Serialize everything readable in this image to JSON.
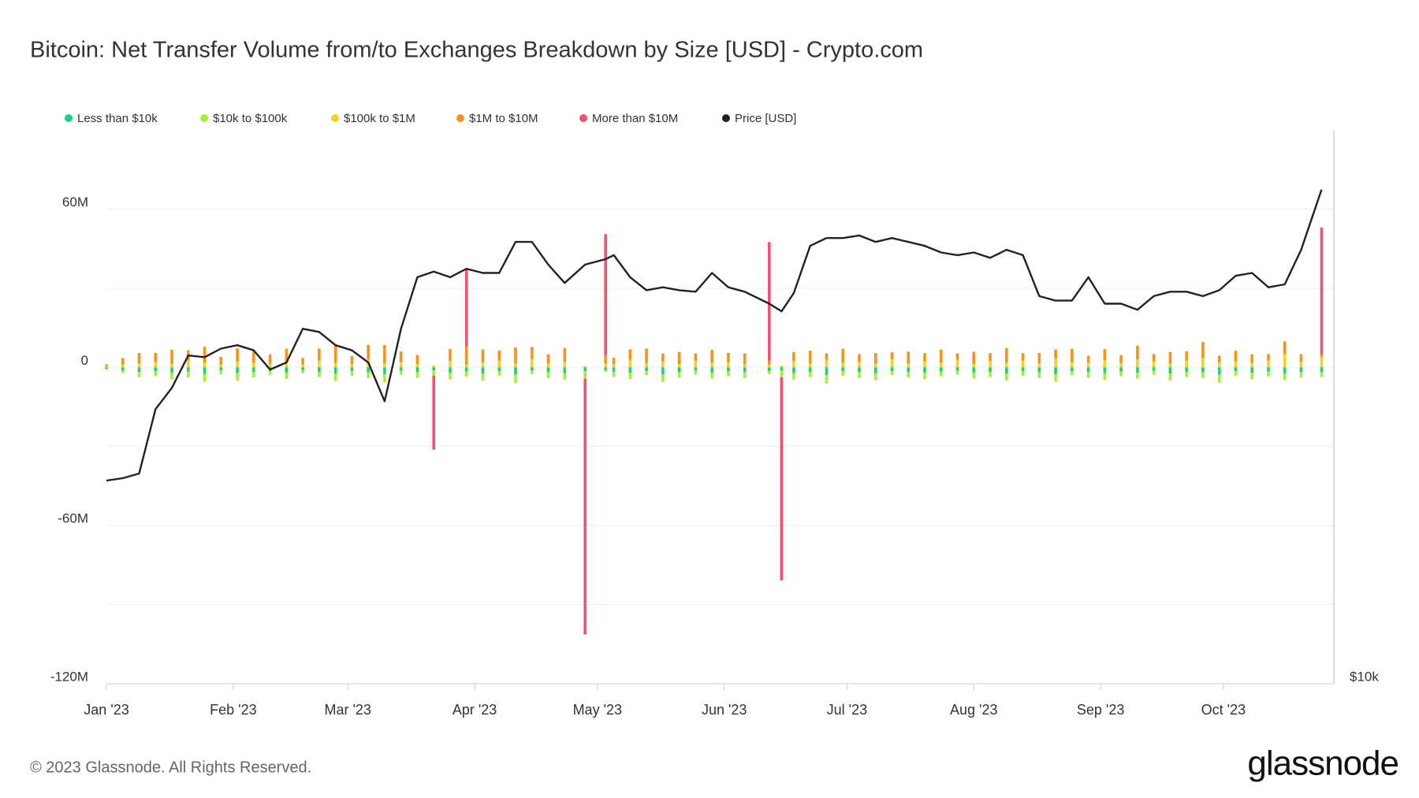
{
  "chart_data": {
    "type": "bar",
    "title": "Bitcoin: Net Transfer Volume from/to Exchanges Breakdown by Size [USD] - Crypto.com",
    "x": [
      0,
      4,
      8,
      12,
      16,
      20,
      24,
      28,
      32,
      36,
      40,
      44,
      48,
      52,
      56,
      60,
      64,
      68,
      72,
      76,
      80,
      84,
      88,
      92,
      96,
      100,
      104,
      108,
      112,
      117,
      122,
      124,
      128,
      132,
      136,
      140,
      144,
      148,
      152,
      156,
      162,
      165,
      168,
      172,
      176,
      180,
      184,
      188,
      192,
      196,
      200,
      204,
      208,
      212,
      216,
      220,
      224,
      228,
      232,
      236,
      240,
      244,
      248,
      252,
      256,
      260,
      264,
      268,
      272,
      276,
      280,
      284,
      288,
      292,
      297
    ],
    "xlim": [
      0,
      300
    ],
    "xticks": [
      {
        "value": 0,
        "label": "Jan '23"
      },
      {
        "value": 31,
        "label": "Feb '23"
      },
      {
        "value": 59,
        "label": "Mar '23"
      },
      {
        "value": 90,
        "label": "Apr '23"
      },
      {
        "value": 120,
        "label": "May '23"
      },
      {
        "value": 151,
        "label": "Jun '23"
      },
      {
        "value": 181,
        "label": "Jul '23"
      },
      {
        "value": 212,
        "label": "Aug '23"
      },
      {
        "value": 243,
        "label": "Sep '23"
      },
      {
        "value": 273,
        "label": "Oct '23"
      }
    ],
    "ylim": [
      -120000000,
      90000000
    ],
    "yticks": [
      {
        "value": -120000000,
        "label": "-120M"
      },
      {
        "value": -60000000,
        "label": "-60M"
      },
      0,
      {
        "value": 60000000,
        "label": "60M"
      }
    ],
    "minor_yticks": [
      -90000000,
      -30000000,
      30000000
    ],
    "y2lim": [
      10000,
      40456
    ],
    "y2ticks": [
      {
        "value": 10000,
        "label": "$10k"
      }
    ],
    "y2_log_scale": true,
    "grid": true,
    "stacked": true,
    "series": [
      {
        "name": "Less than $10k",
        "color": "#14d47f",
        "values": [
          -500000.0,
          -1200000.0,
          -1800000.0,
          -1500000.0,
          -2000000.0,
          -1600000.0,
          -2500000.0,
          -1200000.0,
          -2200000.0,
          -1800000.0,
          -1400000.0,
          -2000000.0,
          -1100000.0,
          -1700000.0,
          -2300000.0,
          -1500000.0,
          -1900000.0,
          -2600000.0,
          -1300000.0,
          -1800000.0,
          -1200000.0,
          -2100000.0,
          -1600000.0,
          -2400000.0,
          -1500000.0,
          -2800000.0,
          -1200000.0,
          -1900000.0,
          -2200000.0,
          -1500000.0,
          -1000000.0,
          -1700000.0,
          -2100000.0,
          -1400000.0,
          -2600000.0,
          -1800000.0,
          -1300000.0,
          -2000000.0,
          -1600000.0,
          -1900000.0,
          -1400000.0,
          -1200000.0,
          -2200000.0,
          -1700000.0,
          -2900000.0,
          -1500000.0,
          -1900000.0,
          -2300000.0,
          -1400000.0,
          -1800000.0,
          -2100000.0,
          -1600000.0,
          -1300000.0,
          -2000000.0,
          -1700000.0,
          -2400000.0,
          -1500000.0,
          -1900000.0,
          -2600000.0,
          -1400000.0,
          -1800000.0,
          -2200000.0,
          -1600000.0,
          -2000000.0,
          -1300000.0,
          -2400000.0,
          -1700000.0,
          -1900000.0,
          -2800000.0,
          -1500000.0,
          -2100000.0,
          -1600000.0,
          -2300000.0,
          -1800000.0,
          -1900000.0
        ]
      },
      {
        "name": "$10k to $100k",
        "color": "#a6f02f",
        "values": [
          -400000.0,
          -1000000.0,
          -2000000.0,
          -1800000.0,
          -2600000.0,
          -2200000.0,
          -3000000.0,
          -1500000.0,
          -2800000.0,
          -2000000.0,
          -1600000.0,
          -2400000.0,
          -1200000.0,
          -2000000.0,
          -2900000.0,
          -1800000.0,
          -2200000.0,
          -3100000.0,
          -1600000.0,
          -2100000.0,
          -2000000.0,
          -2500000.0,
          -1900000.0,
          -2700000.0,
          -1700000.0,
          -3200000.0,
          -1400000.0,
          -2200000.0,
          -2500000.0,
          -2800000.0,
          -800000.0,
          -2000000.0,
          -2400000.0,
          -1600000.0,
          -2900000.0,
          -2100000.0,
          -1500000.0,
          -2300000.0,
          -1800000.0,
          -2200000.0,
          -1200000.0,
          -2600000.0,
          -2500000.0,
          -2000000.0,
          -3300000.0,
          -1700000.0,
          -2200000.0,
          -2600000.0,
          -1600000.0,
          -2100000.0,
          -2400000.0,
          -1800000.0,
          -1500000.0,
          -2300000.0,
          -2000000.0,
          -2700000.0,
          -1700000.0,
          -2200000.0,
          -2900000.0,
          -1600000.0,
          -2100000.0,
          -2500000.0,
          -1800000.0,
          -2300000.0,
          -1500000.0,
          -2700000.0,
          -2000000.0,
          -2200000.0,
          -3100000.0,
          -1700000.0,
          -2400000.0,
          -1900000.0,
          -2600000.0,
          -2100000.0,
          -1800000.0
        ]
      },
      {
        "name": "$100k to $1M",
        "color": "#f8d21b",
        "values": [
          300000.0,
          1000000.0,
          1500000.0,
          2000000.0,
          1200000.0,
          2500000.0,
          1800000.0,
          1000000.0,
          2200000.0,
          1600000.0,
          1400000.0,
          2000000.0,
          1100000.0,
          2600000.0,
          1700000.0,
          1300000.0,
          3000000.0,
          1500000.0,
          2000000.0,
          1200000.0,
          800000.0,
          2400000.0,
          1000000.0,
          1800000.0,
          2600000.0,
          1500000.0,
          3200000.0,
          1400000.0,
          2100000.0,
          500000.0,
          1500000.0,
          1200000.0,
          2800000.0,
          1600000.0,
          2200000.0,
          1300000.0,
          2500000.0,
          1700000.0,
          1900000.0,
          1100000.0,
          1000000.0,
          600000.0,
          2300000.0,
          1500000.0,
          2800000.0,
          1800000.0,
          2000000.0,
          1400000.0,
          3100000.0,
          1600000.0,
          2200000.0,
          1700000.0,
          2900000.0,
          1300000.0,
          2400000.0,
          1900000.0,
          2600000.0,
          1500000.0,
          3400000.0,
          2000000.0,
          1800000.0,
          2700000.0,
          1600000.0,
          3000000.0,
          2200000.0,
          1400000.0,
          2500000.0,
          3600000.0,
          1900000.0,
          2300000.0,
          1700000.0,
          2600000.0,
          5000000.0,
          2000000.0,
          4000000.0
        ]
      },
      {
        "name": "$1M to $10M",
        "color": "#f7931a",
        "values": [
          800000.0,
          2500000.0,
          4000000.0,
          3500000.0,
          5500000.0,
          4000000.0,
          6000000.0,
          3000000.0,
          5000000.0,
          4500000.0,
          3500000.0,
          5000000.0,
          2500000.0,
          4500000.0,
          6500000.0,
          3000000.0,
          5500000.0,
          7000000.0,
          4000000.0,
          3500000.0,
          0,
          4500000.0,
          7000000.0,
          5000000.0,
          3800000.0,
          6000000.0,
          4500000.0,
          3500000.0,
          5200000.0,
          0,
          3000000.0,
          2500000.0,
          4000000.0,
          5500000.0,
          3000000.0,
          4500000.0,
          2800000.0,
          5000000.0,
          3600000.0,
          4200000.0,
          1500000.0,
          0,
          3500000.0,
          4800000.0,
          2500000.0,
          5200000.0,
          3000000.0,
          4000000.0,
          2600000.0,
          4400000.0,
          3200000.0,
          5000000.0,
          2400000.0,
          4600000.0,
          3000000.0,
          5400000.0,
          2800000.0,
          4000000.0,
          3400000.0,
          5000000.0,
          2600000.0,
          4200000.0,
          3000000.0,
          5200000.0,
          2800000.0,
          4400000.0,
          3600000.0,
          6000000.0,
          2500000.0,
          4000000.0,
          3200000.0,
          2400000.0,
          4800000.0,
          3000000.0,
          1000000.0
        ]
      },
      {
        "name": "More than $10M",
        "color": "#f4516c",
        "values": [
          0,
          0,
          0,
          0,
          0,
          0,
          0,
          0,
          0,
          0,
          0,
          0,
          0,
          0,
          0,
          0,
          0,
          0,
          0,
          0,
          -28000000.0,
          0,
          29000000.0,
          0,
          0,
          0,
          0,
          0,
          0,
          -97000000.0,
          46000000.0,
          0,
          0,
          0,
          0,
          0,
          0,
          0,
          0,
          0,
          45000000.0,
          -77000000.0,
          0,
          0,
          0,
          0,
          0,
          0,
          0,
          0,
          0,
          0,
          0,
          0,
          0,
          0,
          0,
          0,
          0,
          0,
          0,
          0,
          0,
          0,
          0,
          0,
          0,
          0,
          0,
          0,
          0,
          0,
          0,
          0,
          48000000.0
        ]
      },
      {
        "name": "Price [USD]",
        "color": "#222222",
        "axis": "y2",
        "values": [
          16700,
          16800,
          17000,
          20000,
          21100,
          22900,
          22800,
          23300,
          23500,
          23200,
          22100,
          22500,
          24500,
          24300,
          23500,
          23200,
          22500,
          20400,
          24500,
          27900,
          28300,
          27900,
          28500,
          28200,
          28200,
          30500,
          30500,
          28800,
          27500,
          28800,
          29200,
          29500,
          27900,
          27000,
          27200,
          27000,
          26900,
          28200,
          27200,
          26900,
          26100,
          25600,
          26800,
          30200,
          30800,
          30800,
          31000,
          30500,
          30800,
          30500,
          30200,
          29700,
          29500,
          29700,
          29300,
          29900,
          29500,
          26600,
          26300,
          26300,
          27900,
          26100,
          26100,
          25700,
          26600,
          26900,
          26900,
          26600,
          27000,
          28000,
          28200,
          27200,
          27400,
          29900,
          34800
        ]
      }
    ],
    "legend_position": "top-left"
  },
  "footer": {
    "copyright": "© 2023 Glassnode. All Rights Reserved.",
    "brand": "glassnode"
  }
}
